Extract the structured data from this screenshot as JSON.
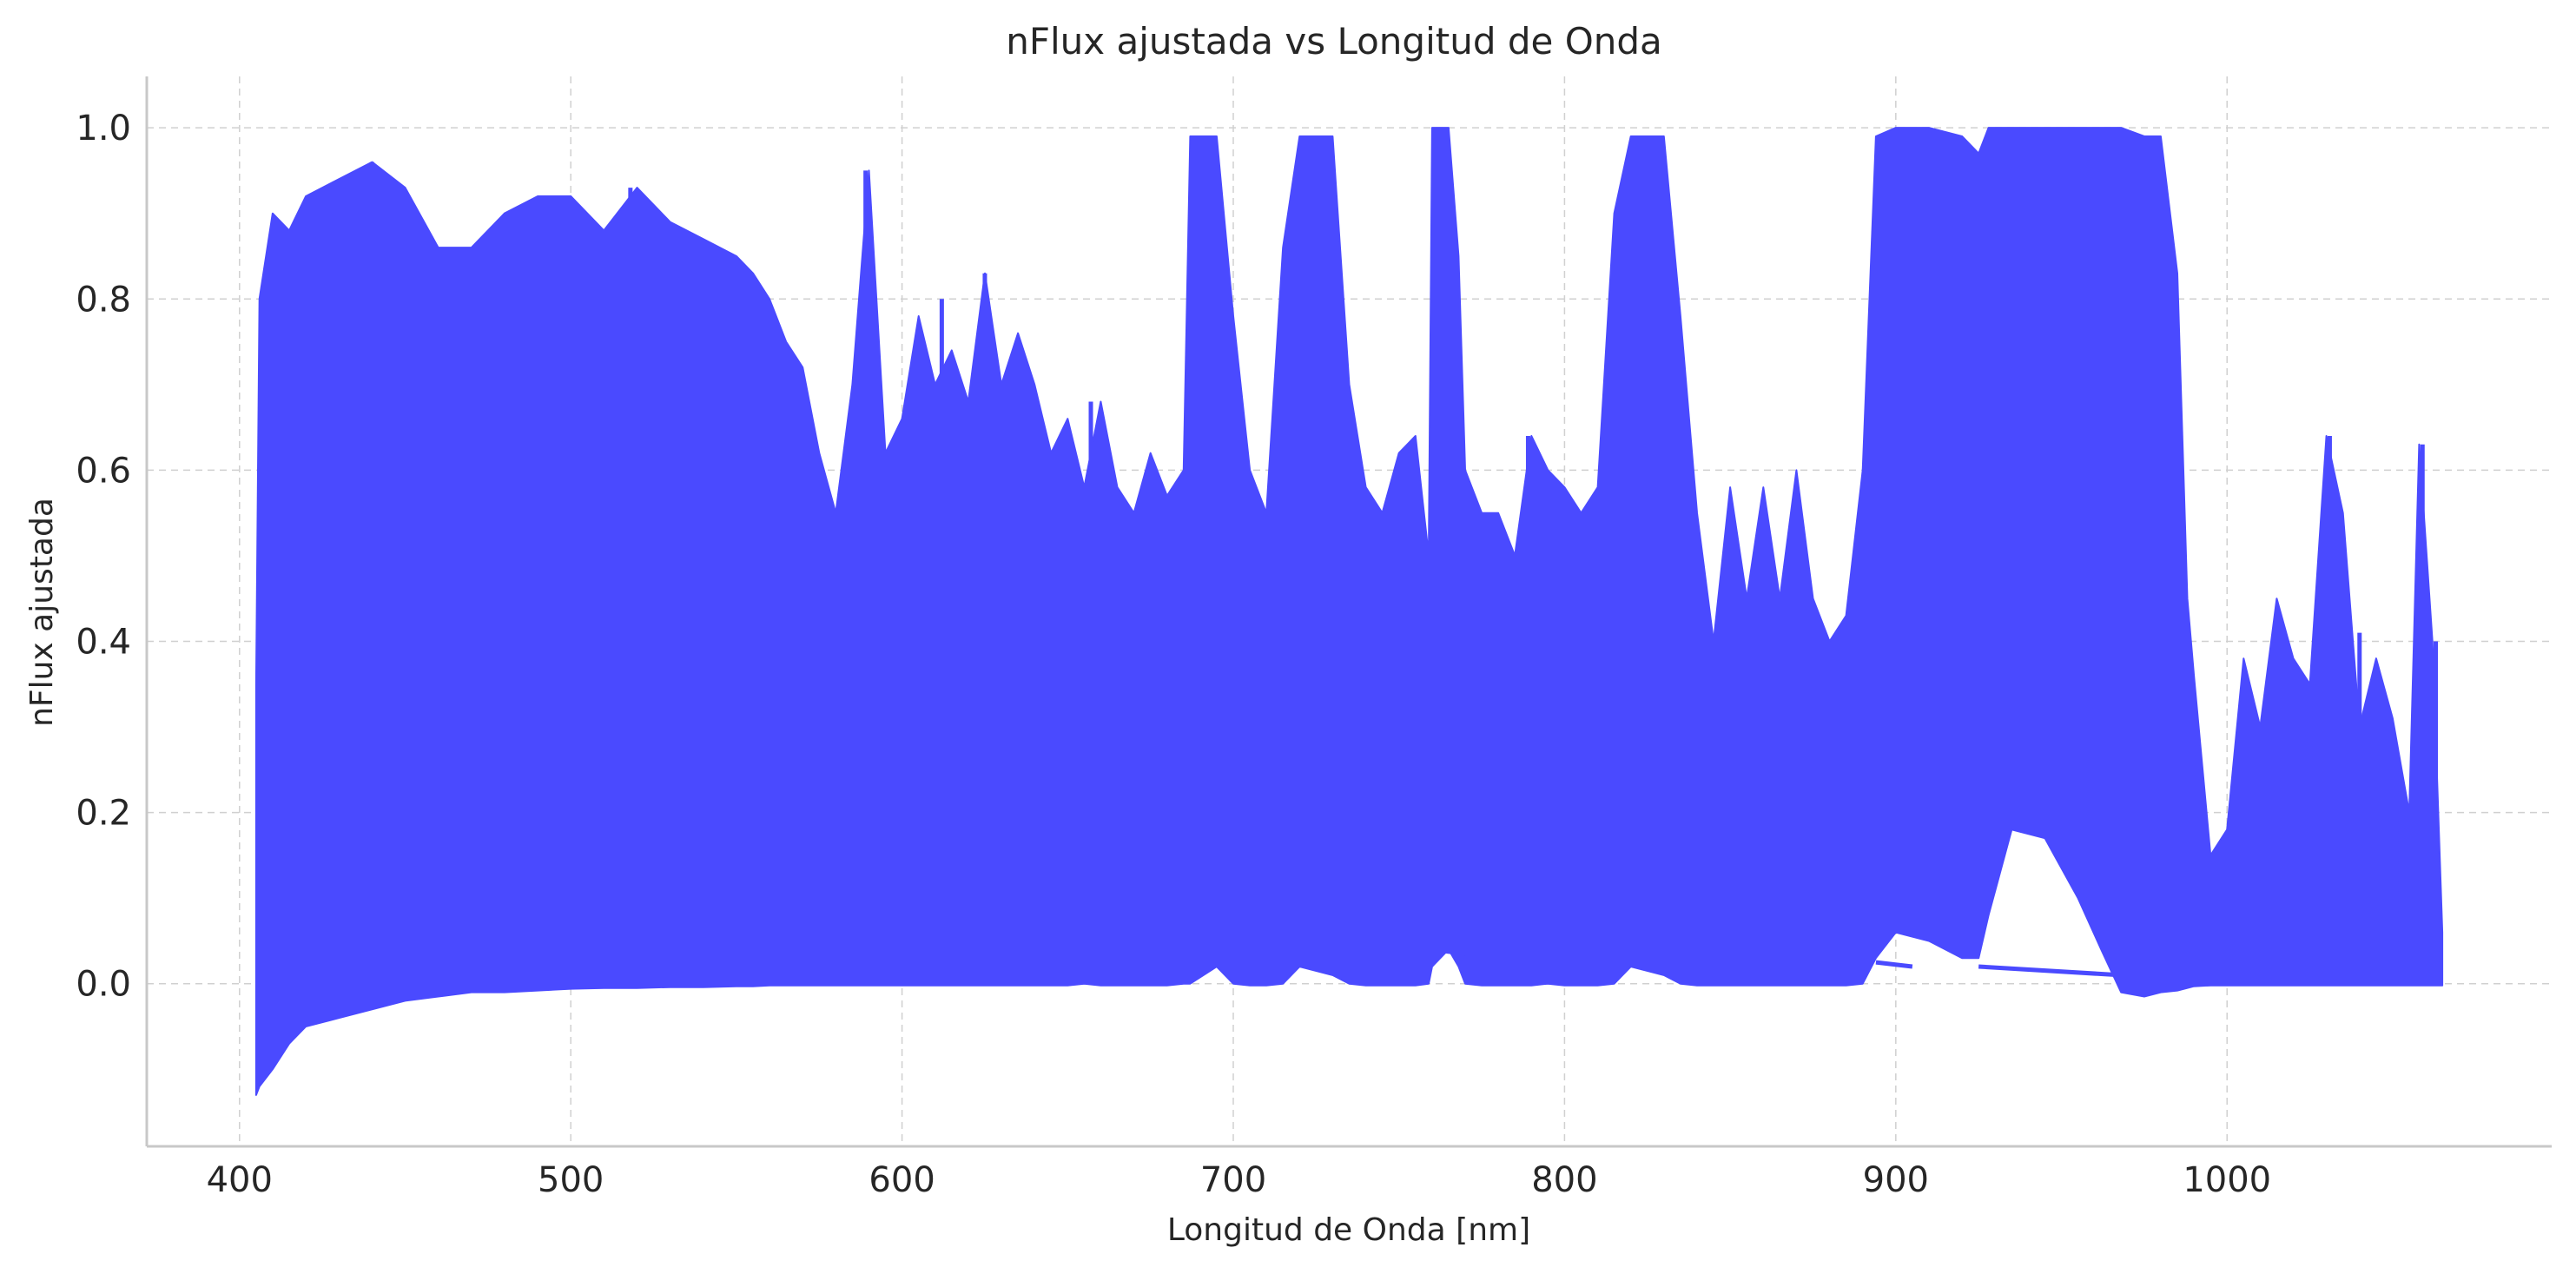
{
  "chart_data": {
    "type": "line",
    "title": "nFlux ajustada vs Longitud de Onda",
    "xlabel": "Longitud de Onda [nm]",
    "ylabel": "nFlux ajustada",
    "xlim": [
      372,
      1098
    ],
    "ylim": [
      -0.19,
      1.06
    ],
    "x_ticks": [
      "400",
      "500",
      "600",
      "700",
      "800",
      "900",
      "1000"
    ],
    "y_ticks": [
      "0.0",
      "0.2",
      "0.4",
      "0.6",
      "0.8",
      "1.0"
    ],
    "grid": true,
    "line_color": "#4a4aff",
    "series": [
      {
        "x_range": [
          405,
          1065
        ],
        "envelope": [
          {
            "x": 405,
            "low": -0.13,
            "high": 0.35
          },
          {
            "x": 406,
            "low": -0.12,
            "high": 0.8
          },
          {
            "x": 410,
            "low": -0.1,
            "high": 0.9
          },
          {
            "x": 415,
            "low": -0.07,
            "high": 0.88
          },
          {
            "x": 420,
            "low": -0.05,
            "high": 0.92
          },
          {
            "x": 430,
            "low": -0.04,
            "high": 0.94
          },
          {
            "x": 440,
            "low": -0.03,
            "high": 0.96
          },
          {
            "x": 450,
            "low": -0.02,
            "high": 0.93
          },
          {
            "x": 460,
            "low": -0.015,
            "high": 0.86
          },
          {
            "x": 470,
            "low": -0.01,
            "high": 0.86
          },
          {
            "x": 480,
            "low": -0.01,
            "high": 0.9
          },
          {
            "x": 490,
            "low": -0.008,
            "high": 0.92
          },
          {
            "x": 500,
            "low": -0.006,
            "high": 0.92
          },
          {
            "x": 510,
            "low": -0.005,
            "high": 0.88
          },
          {
            "x": 520,
            "low": -0.005,
            "high": 0.93
          },
          {
            "x": 530,
            "low": -0.004,
            "high": 0.89
          },
          {
            "x": 540,
            "low": -0.004,
            "high": 0.87
          },
          {
            "x": 550,
            "low": -0.003,
            "high": 0.85
          },
          {
            "x": 555,
            "low": -0.003,
            "high": 0.83
          },
          {
            "x": 560,
            "low": -0.002,
            "high": 0.8
          },
          {
            "x": 565,
            "low": -0.002,
            "high": 0.75
          },
          {
            "x": 570,
            "low": -0.002,
            "high": 0.72
          },
          {
            "x": 575,
            "low": -0.002,
            "high": 0.62
          },
          {
            "x": 580,
            "low": -0.002,
            "high": 0.55
          },
          {
            "x": 585,
            "low": -0.002,
            "high": 0.7
          },
          {
            "x": 590,
            "low": -0.002,
            "high": 0.95
          },
          {
            "x": 595,
            "low": -0.002,
            "high": 0.62
          },
          {
            "x": 600,
            "low": -0.002,
            "high": 0.66
          },
          {
            "x": 605,
            "low": -0.002,
            "high": 0.78
          },
          {
            "x": 610,
            "low": -0.002,
            "high": 0.7
          },
          {
            "x": 615,
            "low": -0.002,
            "high": 0.74
          },
          {
            "x": 620,
            "low": -0.002,
            "high": 0.68
          },
          {
            "x": 625,
            "low": -0.002,
            "high": 0.83
          },
          {
            "x": 630,
            "low": -0.002,
            "high": 0.7
          },
          {
            "x": 635,
            "low": -0.002,
            "high": 0.76
          },
          {
            "x": 640,
            "low": -0.002,
            "high": 0.7
          },
          {
            "x": 645,
            "low": -0.002,
            "high": 0.62
          },
          {
            "x": 650,
            "low": -0.002,
            "high": 0.66
          },
          {
            "x": 655,
            "low": 0.0,
            "high": 0.58
          },
          {
            "x": 660,
            "low": -0.002,
            "high": 0.68
          },
          {
            "x": 665,
            "low": -0.002,
            "high": 0.58
          },
          {
            "x": 670,
            "low": -0.002,
            "high": 0.55
          },
          {
            "x": 675,
            "low": -0.002,
            "high": 0.62
          },
          {
            "x": 680,
            "low": -0.002,
            "high": 0.57
          },
          {
            "x": 685,
            "low": 0.0,
            "high": 0.6
          },
          {
            "x": 687,
            "low": 0.0,
            "high": 0.99
          },
          {
            "x": 695,
            "low": 0.02,
            "high": 0.99
          },
          {
            "x": 700,
            "low": 0.0,
            "high": 0.78
          },
          {
            "x": 705,
            "low": -0.002,
            "high": 0.6
          },
          {
            "x": 710,
            "low": -0.002,
            "high": 0.55
          },
          {
            "x": 715,
            "low": 0.0,
            "high": 0.86
          },
          {
            "x": 720,
            "low": 0.02,
            "high": 0.99
          },
          {
            "x": 730,
            "low": 0.01,
            "high": 0.99
          },
          {
            "x": 735,
            "low": 0.0,
            "high": 0.7
          },
          {
            "x": 740,
            "low": -0.002,
            "high": 0.58
          },
          {
            "x": 745,
            "low": -0.002,
            "high": 0.55
          },
          {
            "x": 750,
            "low": -0.002,
            "high": 0.62
          },
          {
            "x": 755,
            "low": -0.002,
            "high": 0.64
          },
          {
            "x": 759,
            "low": 0.0,
            "high": 0.5
          },
          {
            "x": 760,
            "low": 0.02,
            "high": 1.0
          },
          {
            "x": 765,
            "low": 0.04,
            "high": 1.0
          },
          {
            "x": 768,
            "low": 0.02,
            "high": 0.85
          },
          {
            "x": 770,
            "low": 0.0,
            "high": 0.6
          },
          {
            "x": 775,
            "low": -0.002,
            "high": 0.55
          },
          {
            "x": 780,
            "low": -0.002,
            "high": 0.55
          },
          {
            "x": 785,
            "low": -0.002,
            "high": 0.5
          },
          {
            "x": 790,
            "low": -0.002,
            "high": 0.64
          },
          {
            "x": 795,
            "low": 0.0,
            "high": 0.6
          },
          {
            "x": 800,
            "low": -0.002,
            "high": 0.58
          },
          {
            "x": 805,
            "low": -0.002,
            "high": 0.55
          },
          {
            "x": 810,
            "low": -0.002,
            "high": 0.58
          },
          {
            "x": 815,
            "low": 0.0,
            "high": 0.9
          },
          {
            "x": 820,
            "low": 0.02,
            "high": 0.99
          },
          {
            "x": 830,
            "low": 0.01,
            "high": 0.99
          },
          {
            "x": 835,
            "low": 0.0,
            "high": 0.78
          },
          {
            "x": 840,
            "low": -0.002,
            "high": 0.55
          },
          {
            "x": 845,
            "low": -0.002,
            "high": 0.4
          },
          {
            "x": 850,
            "low": -0.002,
            "high": 0.58
          },
          {
            "x": 855,
            "low": -0.002,
            "high": 0.45
          },
          {
            "x": 860,
            "low": -0.002,
            "high": 0.58
          },
          {
            "x": 865,
            "low": -0.002,
            "high": 0.45
          },
          {
            "x": 870,
            "low": -0.002,
            "high": 0.6
          },
          {
            "x": 875,
            "low": -0.002,
            "high": 0.45
          },
          {
            "x": 880,
            "low": -0.002,
            "high": 0.4
          },
          {
            "x": 885,
            "low": -0.002,
            "high": 0.43
          },
          {
            "x": 890,
            "low": 0.0,
            "high": 0.6
          },
          {
            "x": 894,
            "low": 0.03,
            "high": 0.99
          },
          {
            "x": 900,
            "low": 0.06,
            "high": 1.0
          },
          {
            "x": 910,
            "low": 0.05,
            "high": 1.0
          },
          {
            "x": 920,
            "low": 0.03,
            "high": 0.99
          },
          {
            "x": 925,
            "low": 0.03,
            "high": 0.97
          },
          {
            "x": 928,
            "low": 0.08,
            "high": 1.0
          },
          {
            "x": 935,
            "low": 0.18,
            "high": 1.0
          },
          {
            "x": 945,
            "low": 0.17,
            "high": 1.0
          },
          {
            "x": 955,
            "low": 0.1,
            "high": 1.0
          },
          {
            "x": 962,
            "low": 0.04,
            "high": 1.0
          },
          {
            "x": 968,
            "low": -0.01,
            "high": 1.0
          },
          {
            "x": 975,
            "low": -0.015,
            "high": 0.99
          },
          {
            "x": 980,
            "low": -0.01,
            "high": 0.99
          },
          {
            "x": 985,
            "low": -0.008,
            "high": 0.83
          },
          {
            "x": 988,
            "low": -0.005,
            "high": 0.45
          },
          {
            "x": 990,
            "low": -0.003,
            "high": 0.36
          },
          {
            "x": 995,
            "low": -0.002,
            "high": 0.15
          },
          {
            "x": 1000,
            "low": -0.002,
            "high": 0.18
          },
          {
            "x": 1005,
            "low": -0.002,
            "high": 0.38
          },
          {
            "x": 1010,
            "low": -0.002,
            "high": 0.3
          },
          {
            "x": 1015,
            "low": -0.002,
            "high": 0.45
          },
          {
            "x": 1020,
            "low": -0.002,
            "high": 0.38
          },
          {
            "x": 1025,
            "low": -0.002,
            "high": 0.35
          },
          {
            "x": 1030,
            "low": -0.002,
            "high": 0.64
          },
          {
            "x": 1035,
            "low": -0.002,
            "high": 0.55
          },
          {
            "x": 1040,
            "low": -0.002,
            "high": 0.3
          },
          {
            "x": 1045,
            "low": -0.002,
            "high": 0.38
          },
          {
            "x": 1050,
            "low": -0.002,
            "high": 0.31
          },
          {
            "x": 1055,
            "low": -0.002,
            "high": 0.2
          },
          {
            "x": 1058,
            "low": -0.002,
            "high": 0.63
          },
          {
            "x": 1062,
            "low": -0.002,
            "high": 0.4
          },
          {
            "x": 1065,
            "low": -0.002,
            "high": 0.06
          }
        ],
        "gap_lines": [
          {
            "x1": 760,
            "y1": 0.04,
            "x2": 770,
            "y2": 0.035
          },
          {
            "x1": 894,
            "y1": 0.025,
            "x2": 905,
            "y2": 0.02
          },
          {
            "x1": 925,
            "y1": 0.02,
            "x2": 968,
            "y2": 0.01
          }
        ],
        "spikes": [
          {
            "x": 440,
            "y": 0.96
          },
          {
            "x": 470,
            "y": 0.86
          },
          {
            "x": 484,
            "y": 0.85
          },
          {
            "x": 518,
            "y": 0.93
          },
          {
            "x": 587,
            "y": 0.75
          },
          {
            "x": 589,
            "y": 0.95
          },
          {
            "x": 612,
            "y": 0.8
          },
          {
            "x": 625,
            "y": 0.83
          },
          {
            "x": 657,
            "y": 0.68
          },
          {
            "x": 789,
            "y": 0.64
          },
          {
            "x": 1031,
            "y": 0.64
          },
          {
            "x": 1059,
            "y": 0.63
          },
          {
            "x": 1063,
            "y": 0.4
          },
          {
            "x": 1040,
            "y": 0.41
          }
        ]
      }
    ]
  }
}
